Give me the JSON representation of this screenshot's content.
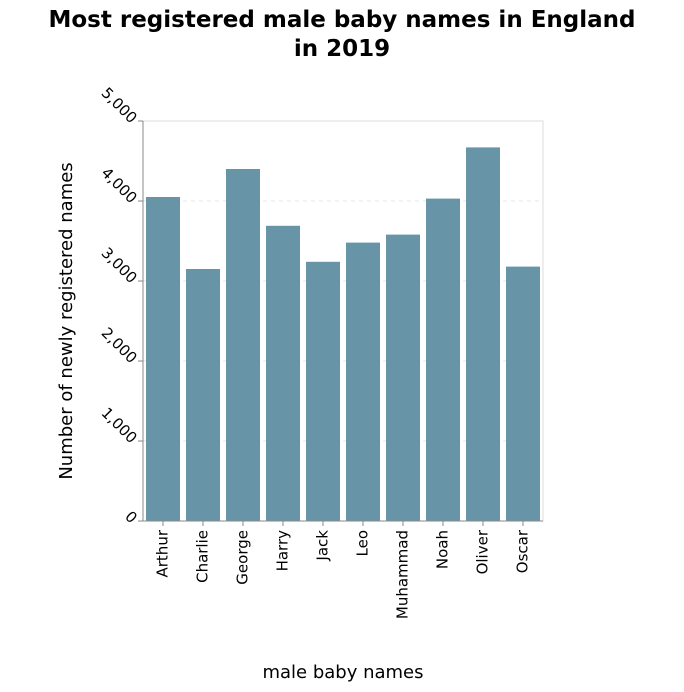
{
  "chart_data": {
    "type": "bar",
    "title_lines": [
      "Most registered male baby names in England",
      "in 2019"
    ],
    "xlabel": "male baby names",
    "ylabel": "Number of newly registered names",
    "categories": [
      "Arthur",
      "Charlie",
      "George",
      "Harry",
      "Jack",
      "Leo",
      "Muhammad",
      "Noah",
      "Oliver",
      "Oscar"
    ],
    "values": [
      4050,
      3150,
      4400,
      3690,
      3240,
      3480,
      3580,
      4030,
      4670,
      3180
    ],
    "ylim": [
      0,
      5000
    ],
    "yticks": [
      0,
      1000,
      2000,
      3000,
      4000,
      5000
    ],
    "ytick_labels": [
      "0",
      "1,000",
      "2,000",
      "3,000",
      "4,000",
      "5,000"
    ],
    "grid": true,
    "legend": "none",
    "bar_color": "#6794a7"
  }
}
